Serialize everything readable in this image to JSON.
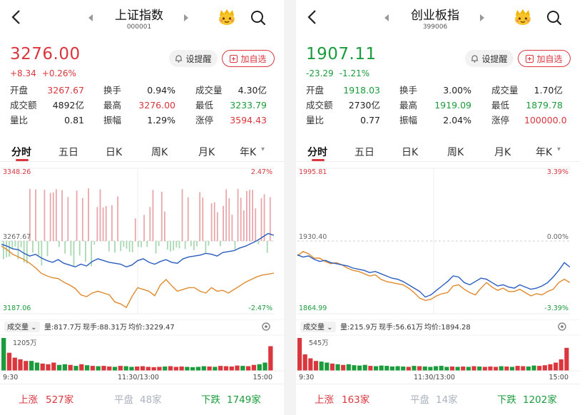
{
  "colors": {
    "up": "#d9363e",
    "down": "#1a9b3c",
    "avg_line": "#e08a2e",
    "price_line": "#2a5dbf",
    "flat": "#aab2bd"
  },
  "panels": [
    {
      "title": "上证指数",
      "code": "000001",
      "price": "3276.00",
      "change": "+8.34",
      "change_pct": "+0.26%",
      "direction": "up",
      "remind_label": "设提醒",
      "add_label": "加自选",
      "stats": [
        {
          "label": "开盘",
          "value": "3267.67",
          "color": "up"
        },
        {
          "label": "换手",
          "value": "0.94%",
          "color": "neutral"
        },
        {
          "label": "成交量",
          "value": "4.30亿",
          "color": "neutral"
        },
        {
          "label": "成交额",
          "value": "4892亿",
          "color": "neutral"
        },
        {
          "label": "最高",
          "value": "3276.00",
          "color": "up"
        },
        {
          "label": "最低",
          "value": "3233.79",
          "color": "down"
        },
        {
          "label": "量比",
          "value": "0.81",
          "color": "neutral"
        },
        {
          "label": "振幅",
          "value": "1.29%",
          "color": "neutral"
        },
        {
          "label": "涨停",
          "value": "3594.43",
          "color": "up"
        }
      ],
      "tabs": [
        "分时",
        "五日",
        "日K",
        "周K",
        "月K",
        "年K"
      ],
      "chart": {
        "y_top": "3348.26",
        "y_mid": "3267.67",
        "y_bottom": "3187.06",
        "pct_top": "2.47%",
        "pct_mid": "",
        "pct_bottom": "-2.47%",
        "price_line": [
          3264,
          3262,
          3259,
          3258,
          3254,
          3251,
          3253,
          3249,
          3246,
          3244,
          3247,
          3243,
          3241,
          3239,
          3242,
          3240,
          3245,
          3248,
          3246,
          3244,
          3243,
          3242,
          3239,
          3241,
          3246,
          3248,
          3244,
          3242,
          3245,
          3247,
          3244,
          3243,
          3248,
          3250,
          3251,
          3252,
          3254,
          3253,
          3251,
          3255,
          3256,
          3257,
          3260,
          3262,
          3265,
          3268,
          3272,
          3276,
          3274
        ],
        "avg_line": [
          3262,
          3258,
          3253,
          3250,
          3247,
          3243,
          3238,
          3232,
          3229,
          3227,
          3226,
          3222,
          3219,
          3215,
          3208,
          3206,
          3210,
          3212,
          3210,
          3208,
          3200,
          3198,
          3194,
          3206,
          3216,
          3214,
          3212,
          3207,
          3219,
          3225,
          3218,
          3212,
          3214,
          3216,
          3216,
          3212,
          3210,
          3216,
          3212,
          3213,
          3210,
          3214,
          3218,
          3222,
          3225,
          3228,
          3230,
          3231,
          3232
        ],
        "y_min": 3187.06,
        "y_max": 3348.26
      },
      "volume": {
        "label": "成交量",
        "vol": "量:817.7万",
        "now": "现手:88.31万",
        "avg": "均价:3229.47",
        "max_label": "1205万",
        "time_start": "9:30",
        "time_mid": "11:30/13:00",
        "time_end": "15:00",
        "bars": [
          1.0,
          0.55,
          0.4,
          0.35,
          0.3,
          0.3,
          0.25,
          0.22,
          0.2,
          0.25,
          0.18,
          0.2,
          0.18,
          0.15,
          0.2,
          0.17,
          0.15,
          0.14,
          0.15,
          0.13,
          0.12,
          0.15,
          0.14,
          0.12,
          0.13,
          0.14,
          0.12,
          0.11,
          0.12,
          0.13,
          0.14,
          0.12,
          0.13,
          0.12,
          0.11,
          0.12,
          0.14,
          0.13,
          0.12,
          0.15,
          0.14,
          0.13,
          0.16,
          0.15,
          0.14,
          0.18,
          0.2,
          0.25,
          0.75
        ]
      },
      "breadth": {
        "up_label": "上涨",
        "up": "527家",
        "flat_label": "平盘",
        "flat": "48家",
        "down_label": "下跌",
        "down": "1749家"
      }
    },
    {
      "title": "创业板指",
      "code": "399006",
      "price": "1907.11",
      "change": "-23.29",
      "change_pct": "-1.21%",
      "direction": "down",
      "remind_label": "设提醒",
      "add_label": "加自选",
      "stats": [
        {
          "label": "开盘",
          "value": "1918.03",
          "color": "down"
        },
        {
          "label": "换手",
          "value": "3.00%",
          "color": "neutral"
        },
        {
          "label": "成交量",
          "value": "1.70亿",
          "color": "neutral"
        },
        {
          "label": "成交额",
          "value": "2730亿",
          "color": "neutral"
        },
        {
          "label": "最高",
          "value": "1919.09",
          "color": "down"
        },
        {
          "label": "最低",
          "value": "1879.78",
          "color": "down"
        },
        {
          "label": "量比",
          "value": "0.77",
          "color": "neutral"
        },
        {
          "label": "振幅",
          "value": "2.04%",
          "color": "neutral"
        },
        {
          "label": "涨停",
          "value": "100000.0",
          "color": "up"
        }
      ],
      "tabs": [
        "分时",
        "五日",
        "日K",
        "周K",
        "月K",
        "年K"
      ],
      "chart": {
        "y_top": "1995.81",
        "y_mid": "1930.40",
        "y_bottom": "1864.99",
        "pct_top": "3.39%",
        "pct_mid": "0.00%",
        "pct_bottom": "-3.39%",
        "price_line": [
          1918,
          1916,
          1917,
          1914,
          1912,
          1913,
          1911,
          1910,
          1909,
          1908,
          1906,
          1905,
          1904,
          1902,
          1903,
          1901,
          1899,
          1897,
          1896,
          1894,
          1891,
          1888,
          1885,
          1880,
          1882,
          1886,
          1890,
          1894,
          1899,
          1898,
          1893,
          1891,
          1894,
          1897,
          1896,
          1893,
          1890,
          1891,
          1889,
          1888,
          1891,
          1889,
          1887,
          1888,
          1890,
          1893,
          1898,
          1904,
          1911,
          1907
        ],
        "avg_line": [
          1917,
          1921,
          1919,
          1915,
          1915,
          1912,
          1910,
          1911,
          1909,
          1906,
          1904,
          1903,
          1901,
          1899,
          1900,
          1896,
          1894,
          1893,
          1892,
          1891,
          1888,
          1884,
          1879,
          1877,
          1878,
          1881,
          1883,
          1884,
          1890,
          1891,
          1887,
          1884,
          1882,
          1888,
          1893,
          1889,
          1886,
          1888,
          1885,
          1885,
          1887,
          1884,
          1881,
          1883,
          1882,
          1885,
          1887,
          1893,
          1896,
          1893
        ],
        "y_min": 1864.99,
        "y_max": 1995.81
      },
      "volume": {
        "label": "成交量",
        "vol": "量:215.9万",
        "now": "现手:56.61万",
        "avg": "均价:1894.28",
        "max_label": "545万",
        "time_start": "9:30",
        "time_mid": "11:30/13:00",
        "time_end": "15:00",
        "bars": [
          1.0,
          0.5,
          0.38,
          0.3,
          0.28,
          0.25,
          0.22,
          0.2,
          0.18,
          0.2,
          0.17,
          0.16,
          0.18,
          0.15,
          0.14,
          0.16,
          0.15,
          0.13,
          0.14,
          0.13,
          0.12,
          0.15,
          0.14,
          0.13,
          0.12,
          0.14,
          0.15,
          0.12,
          0.13,
          0.12,
          0.13,
          0.12,
          0.14,
          0.13,
          0.12,
          0.13,
          0.12,
          0.14,
          0.13,
          0.12,
          0.15,
          0.14,
          0.13,
          0.16,
          0.15,
          0.17,
          0.2,
          0.25,
          0.35,
          0.7
        ]
      },
      "breadth": {
        "up_label": "上涨",
        "up": "163家",
        "flat_label": "平盘",
        "flat": "14家",
        "down_label": "下跌",
        "down": "1202家"
      }
    }
  ]
}
